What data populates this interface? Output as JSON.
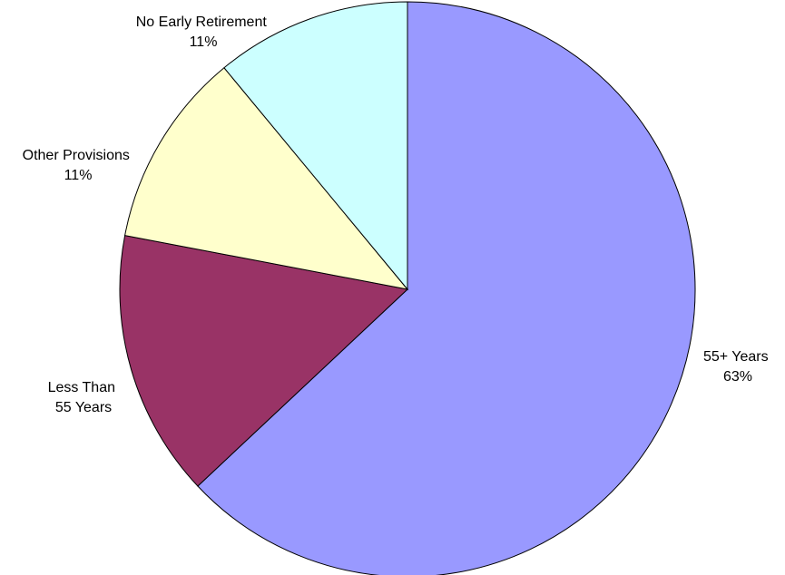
{
  "chart_data": {
    "type": "pie",
    "title": "",
    "start_angle_deg": 0,
    "direction": "clockwise",
    "legend": "none",
    "slices": [
      {
        "label_lines": [
          "55+ Years",
          "63%"
        ],
        "value": 63,
        "color": "#9999ff"
      },
      {
        "label_lines": [
          "Less Than",
          "55 Years"
        ],
        "value": 15,
        "color": "#993366"
      },
      {
        "label_lines": [
          "Other Provisions",
          "11%"
        ],
        "value": 11,
        "color": "#ffffcc"
      },
      {
        "label_lines": [
          "No Early Retirement",
          "11%"
        ],
        "value": 11,
        "color": "#ccffff"
      }
    ]
  }
}
